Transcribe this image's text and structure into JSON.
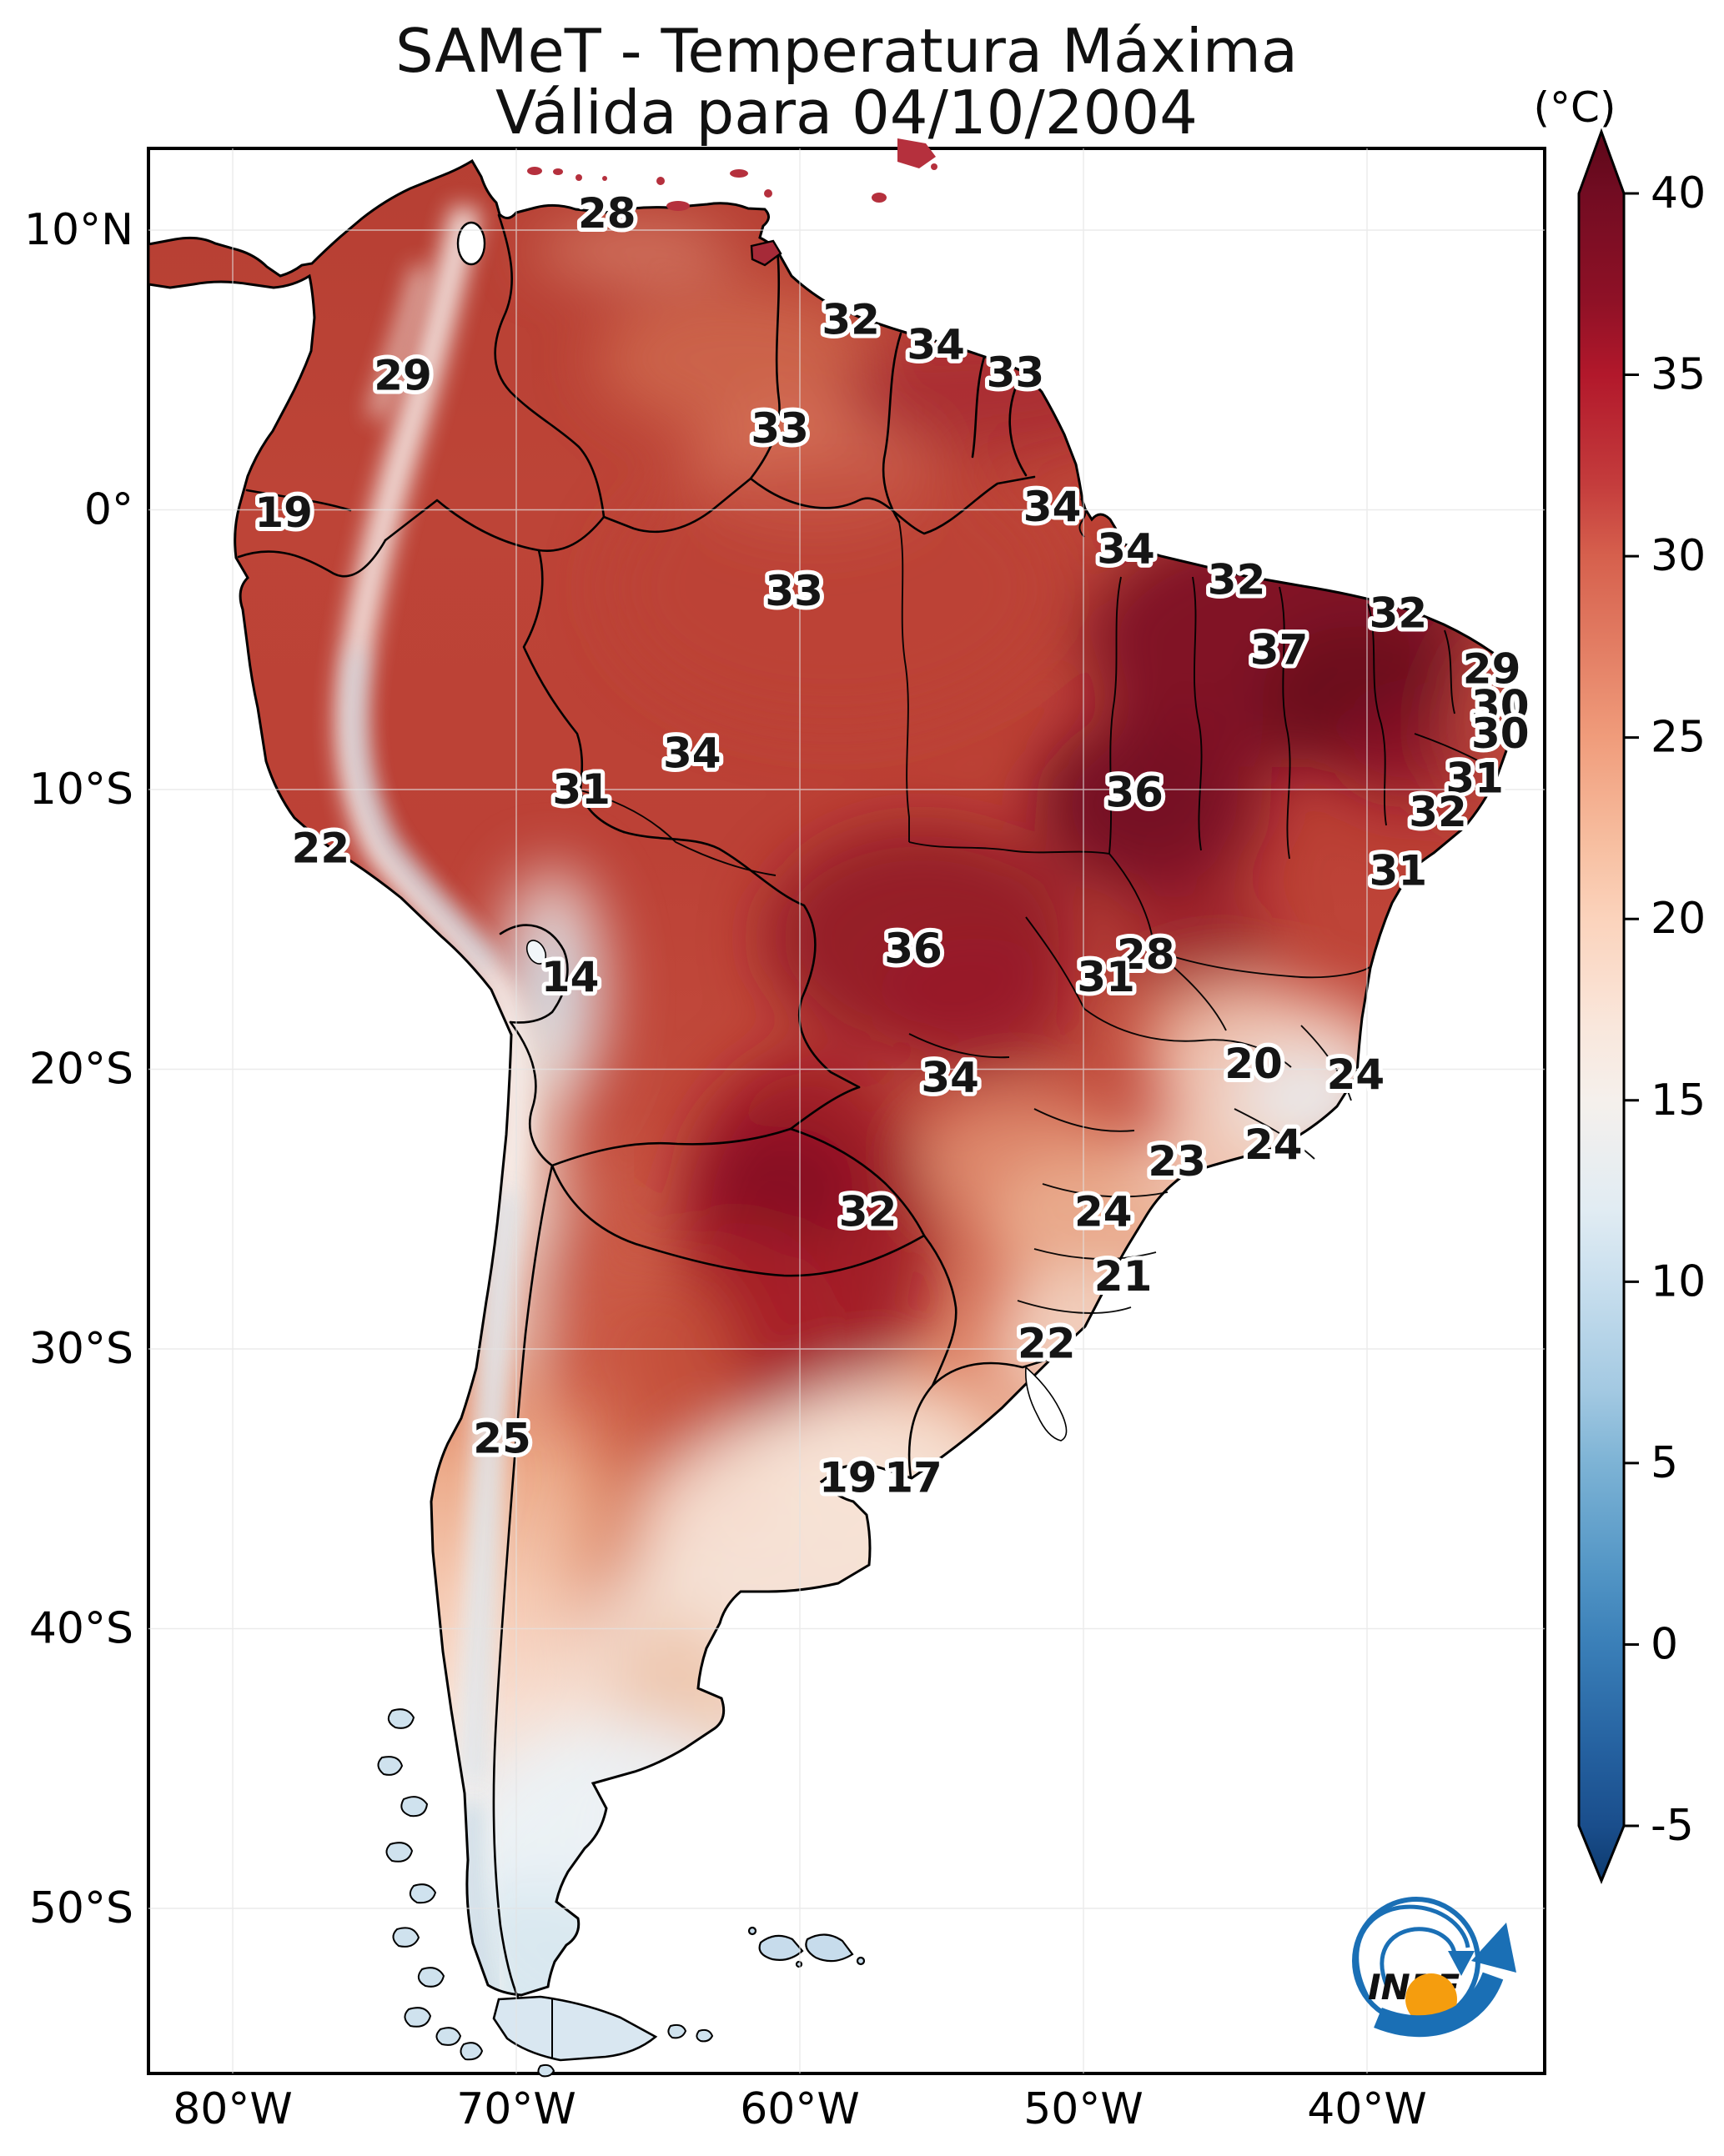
{
  "title": {
    "line1": "SAMeT - Temperatura Máxima",
    "line2": "Válida para 04/10/2004"
  },
  "colorbar": {
    "unit": "(°C)",
    "tick_values": [
      40,
      35,
      30,
      25,
      20,
      15,
      10,
      5,
      0,
      -5
    ],
    "stops": [
      {
        "v": 42,
        "color": "#5c0718"
      },
      {
        "v": 40,
        "color": "#720c22"
      },
      {
        "v": 37,
        "color": "#8f1126"
      },
      {
        "v": 35,
        "color": "#b2182b"
      },
      {
        "v": 32,
        "color": "#c43c3c"
      },
      {
        "v": 30,
        "color": "#d6604d"
      },
      {
        "v": 27,
        "color": "#e58368"
      },
      {
        "v": 25,
        "color": "#f09c7b"
      },
      {
        "v": 22,
        "color": "#f7bfa1"
      },
      {
        "v": 20,
        "color": "#fbd3bc"
      },
      {
        "v": 17,
        "color": "#f9e7dc"
      },
      {
        "v": 15,
        "color": "#f5f0ec"
      },
      {
        "v": 12,
        "color": "#e1ecf3"
      },
      {
        "v": 10,
        "color": "#c9dfee"
      },
      {
        "v": 7,
        "color": "#a3c9e2"
      },
      {
        "v": 5,
        "color": "#7db3d5"
      },
      {
        "v": 2,
        "color": "#5295c5"
      },
      {
        "v": 0,
        "color": "#3a7fb8"
      },
      {
        "v": -3,
        "color": "#24609f"
      },
      {
        "v": -5,
        "color": "#1a4e8c"
      },
      {
        "v": -7,
        "color": "#0d3a6e"
      }
    ]
  },
  "axes": {
    "x_ticks": [
      {
        "label": "80°W",
        "lon": -80
      },
      {
        "label": "70°W",
        "lon": -70
      },
      {
        "label": "60°W",
        "lon": -60
      },
      {
        "label": "50°W",
        "lon": -50
      },
      {
        "label": "40°W",
        "lon": -40
      }
    ],
    "y_ticks": [
      {
        "label": "10°N",
        "lat": 10
      },
      {
        "label": "0°",
        "lat": 0
      },
      {
        "label": "10°S",
        "lat": -10
      },
      {
        "label": "20°S",
        "lat": -20
      },
      {
        "label": "30°S",
        "lat": -30
      },
      {
        "label": "40°S",
        "lat": -40
      },
      {
        "label": "50°S",
        "lat": -50
      }
    ]
  },
  "logo": {
    "text": "INPE"
  },
  "chart_data": {
    "type": "heatmap",
    "title": "SAMeT - Temperatura Máxima",
    "subtitle": "Válida para 04/10/2004",
    "units": "°C",
    "colorbar": {
      "min": -5,
      "max": 40,
      "ticks": [
        40,
        35,
        30,
        25,
        20,
        15,
        10,
        5,
        0,
        -5
      ],
      "extended_arrows": "both",
      "palette": "RdBu_r"
    },
    "x_axis": {
      "tick_labels": [
        "80°W",
        "70°W",
        "60°W",
        "50°W",
        "40°W"
      ],
      "lon_ticks": [
        -80,
        -70,
        -60,
        -50,
        -40
      ]
    },
    "y_axis": {
      "tick_labels": [
        "10°N",
        "0°",
        "10°S",
        "20°S",
        "30°S",
        "40°S",
        "50°S"
      ],
      "lat_ticks": [
        10,
        0,
        -10,
        -20,
        -30,
        -40,
        -50
      ]
    },
    "legend_position": "right",
    "grid": true,
    "points": [
      {
        "value": 28,
        "lon": -66.8,
        "lat": 10.6
      },
      {
        "value": 32,
        "lon": -58.2,
        "lat": 6.8
      },
      {
        "value": 34,
        "lon": -55.2,
        "lat": 5.9
      },
      {
        "value": 33,
        "lon": -52.4,
        "lat": 4.9
      },
      {
        "value": 29,
        "lon": -74.0,
        "lat": 4.8
      },
      {
        "value": 33,
        "lon": -60.7,
        "lat": 2.9
      },
      {
        "value": 19,
        "lon": -78.2,
        "lat": -0.1
      },
      {
        "value": 34,
        "lon": -51.1,
        "lat": 0.1
      },
      {
        "value": 34,
        "lon": -48.5,
        "lat": -1.4
      },
      {
        "value": 32,
        "lon": -44.6,
        "lat": -2.5
      },
      {
        "value": 33,
        "lon": -60.2,
        "lat": -2.9
      },
      {
        "value": 32,
        "lon": -38.9,
        "lat": -3.7
      },
      {
        "value": 37,
        "lon": -43.1,
        "lat": -5.0
      },
      {
        "value": 29,
        "lon": -35.6,
        "lat": -5.7
      },
      {
        "value": 30,
        "lon": -35.3,
        "lat": -7.0
      },
      {
        "value": 30,
        "lon": -35.3,
        "lat": -8.0
      },
      {
        "value": 31,
        "lon": -36.2,
        "lat": -9.6
      },
      {
        "value": 34,
        "lon": -63.8,
        "lat": -8.7
      },
      {
        "value": 31,
        "lon": -67.7,
        "lat": -10.0
      },
      {
        "value": 36,
        "lon": -48.2,
        "lat": -10.1
      },
      {
        "value": 32,
        "lon": -37.5,
        "lat": -10.8
      },
      {
        "value": 22,
        "lon": -76.9,
        "lat": -12.1
      },
      {
        "value": 31,
        "lon": -38.9,
        "lat": -12.9
      },
      {
        "value": 14,
        "lon": -68.1,
        "lat": -16.7
      },
      {
        "value": 36,
        "lon": -56.0,
        "lat": -15.7
      },
      {
        "value": 28,
        "lon": -47.8,
        "lat": -15.9
      },
      {
        "value": 31,
        "lon": -49.2,
        "lat": -16.7
      },
      {
        "value": 34,
        "lon": -54.7,
        "lat": -20.3
      },
      {
        "value": 20,
        "lon": -44.0,
        "lat": -19.8
      },
      {
        "value": 24,
        "lon": -40.4,
        "lat": -20.2
      },
      {
        "value": 24,
        "lon": -43.3,
        "lat": -22.7
      },
      {
        "value": 23,
        "lon": -46.7,
        "lat": -23.3
      },
      {
        "value": 24,
        "lon": -49.3,
        "lat": -25.1
      },
      {
        "value": 21,
        "lon": -48.6,
        "lat": -27.4
      },
      {
        "value": 32,
        "lon": -57.6,
        "lat": -25.1
      },
      {
        "value": 22,
        "lon": -51.3,
        "lat": -29.8
      },
      {
        "value": 25,
        "lon": -70.5,
        "lat": -33.2
      },
      {
        "value": 19,
        "lon": -58.3,
        "lat": -34.6
      },
      {
        "value": 17,
        "lon": -56.0,
        "lat": -34.6
      }
    ]
  }
}
